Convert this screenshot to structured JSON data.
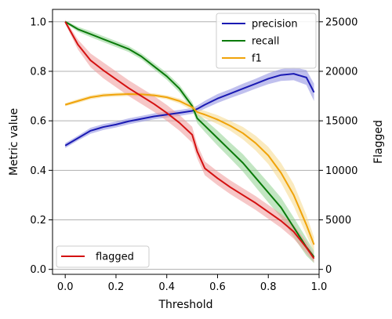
{
  "chart_data": {
    "type": "line",
    "xlabel": "Threshold",
    "ylabel": "Metric value",
    "y2label": "Flagged",
    "xlim": [
      -0.05,
      1.0
    ],
    "ylim": [
      -0.02,
      1.05
    ],
    "y2lim": [
      -500,
      26250
    ],
    "x_ticks": [
      "0.0",
      "0.2",
      "0.4",
      "0.6",
      "0.8",
      "1.0"
    ],
    "x_tick_values": [
      0.0,
      0.2,
      0.4,
      0.6,
      0.8,
      1.0
    ],
    "y_ticks": [
      "0.0",
      "0.2",
      "0.4",
      "0.6",
      "0.8",
      "1.0"
    ],
    "y_tick_values": [
      0.0,
      0.2,
      0.4,
      0.6,
      0.8,
      1.0
    ],
    "y2_ticks": [
      "0",
      "5000",
      "10000",
      "15000",
      "20000",
      "25000"
    ],
    "y2_tick_values": [
      0,
      5000,
      10000,
      15000,
      20000,
      25000
    ],
    "grid": "y-right",
    "legend_left_axis": "top-right",
    "legend_right_axis": "bottom-left",
    "x": [
      0.0,
      0.05,
      0.1,
      0.15,
      0.2,
      0.25,
      0.3,
      0.35,
      0.4,
      0.45,
      0.5,
      0.52,
      0.55,
      0.6,
      0.65,
      0.7,
      0.75,
      0.8,
      0.85,
      0.9,
      0.95,
      0.98
    ],
    "series": [
      {
        "name": "precision",
        "axis": "left",
        "color": "#1a1ab3",
        "band_color": "#8c8ce0",
        "values": [
          0.5,
          0.53,
          0.56,
          0.575,
          0.585,
          0.598,
          0.608,
          0.618,
          0.625,
          0.632,
          0.64,
          0.648,
          0.665,
          0.69,
          0.71,
          0.73,
          0.75,
          0.77,
          0.785,
          0.79,
          0.775,
          0.715
        ],
        "band": [
          0.01,
          0.01,
          0.012,
          0.012,
          0.012,
          0.012,
          0.012,
          0.012,
          0.012,
          0.012,
          0.012,
          0.014,
          0.016,
          0.018,
          0.018,
          0.02,
          0.02,
          0.022,
          0.024,
          0.026,
          0.03,
          0.035
        ]
      },
      {
        "name": "recall",
        "axis": "left",
        "color": "#0a7a0a",
        "band_color": "#8fd18f",
        "values": [
          1.0,
          0.97,
          0.95,
          0.93,
          0.91,
          0.89,
          0.86,
          0.82,
          0.78,
          0.73,
          0.66,
          0.61,
          0.58,
          0.53,
          0.48,
          0.43,
          0.37,
          0.31,
          0.25,
          0.17,
          0.09,
          0.05
        ],
        "band": [
          0.005,
          0.01,
          0.012,
          0.012,
          0.012,
          0.012,
          0.012,
          0.013,
          0.014,
          0.015,
          0.016,
          0.02,
          0.025,
          0.03,
          0.032,
          0.035,
          0.038,
          0.04,
          0.04,
          0.04,
          0.035,
          0.025
        ]
      },
      {
        "name": "f1",
        "axis": "left",
        "color": "#f0a30a",
        "band_color": "#f5d98a",
        "values": [
          0.665,
          0.68,
          0.695,
          0.703,
          0.706,
          0.708,
          0.707,
          0.703,
          0.695,
          0.68,
          0.655,
          0.635,
          0.625,
          0.605,
          0.58,
          0.55,
          0.51,
          0.46,
          0.39,
          0.3,
          0.18,
          0.1
        ],
        "band": [
          0.006,
          0.008,
          0.008,
          0.008,
          0.008,
          0.008,
          0.008,
          0.008,
          0.008,
          0.01,
          0.012,
          0.013,
          0.015,
          0.018,
          0.02,
          0.025,
          0.03,
          0.035,
          0.04,
          0.045,
          0.04,
          0.03
        ]
      },
      {
        "name": "flagged",
        "axis": "right",
        "color": "#d41111",
        "band_color": "#ef9999",
        "values": [
          25000,
          22700,
          21100,
          20100,
          19200,
          18300,
          17500,
          16700,
          15800,
          14800,
          13600,
          11900,
          10200,
          9200,
          8300,
          7500,
          6700,
          5800,
          4900,
          3800,
          2200,
          1100
        ],
        "band": [
          200,
          500,
          700,
          800,
          800,
          800,
          800,
          800,
          800,
          800,
          800,
          700,
          700,
          700,
          700,
          700,
          700,
          700,
          700,
          700,
          600,
          400
        ]
      }
    ]
  }
}
